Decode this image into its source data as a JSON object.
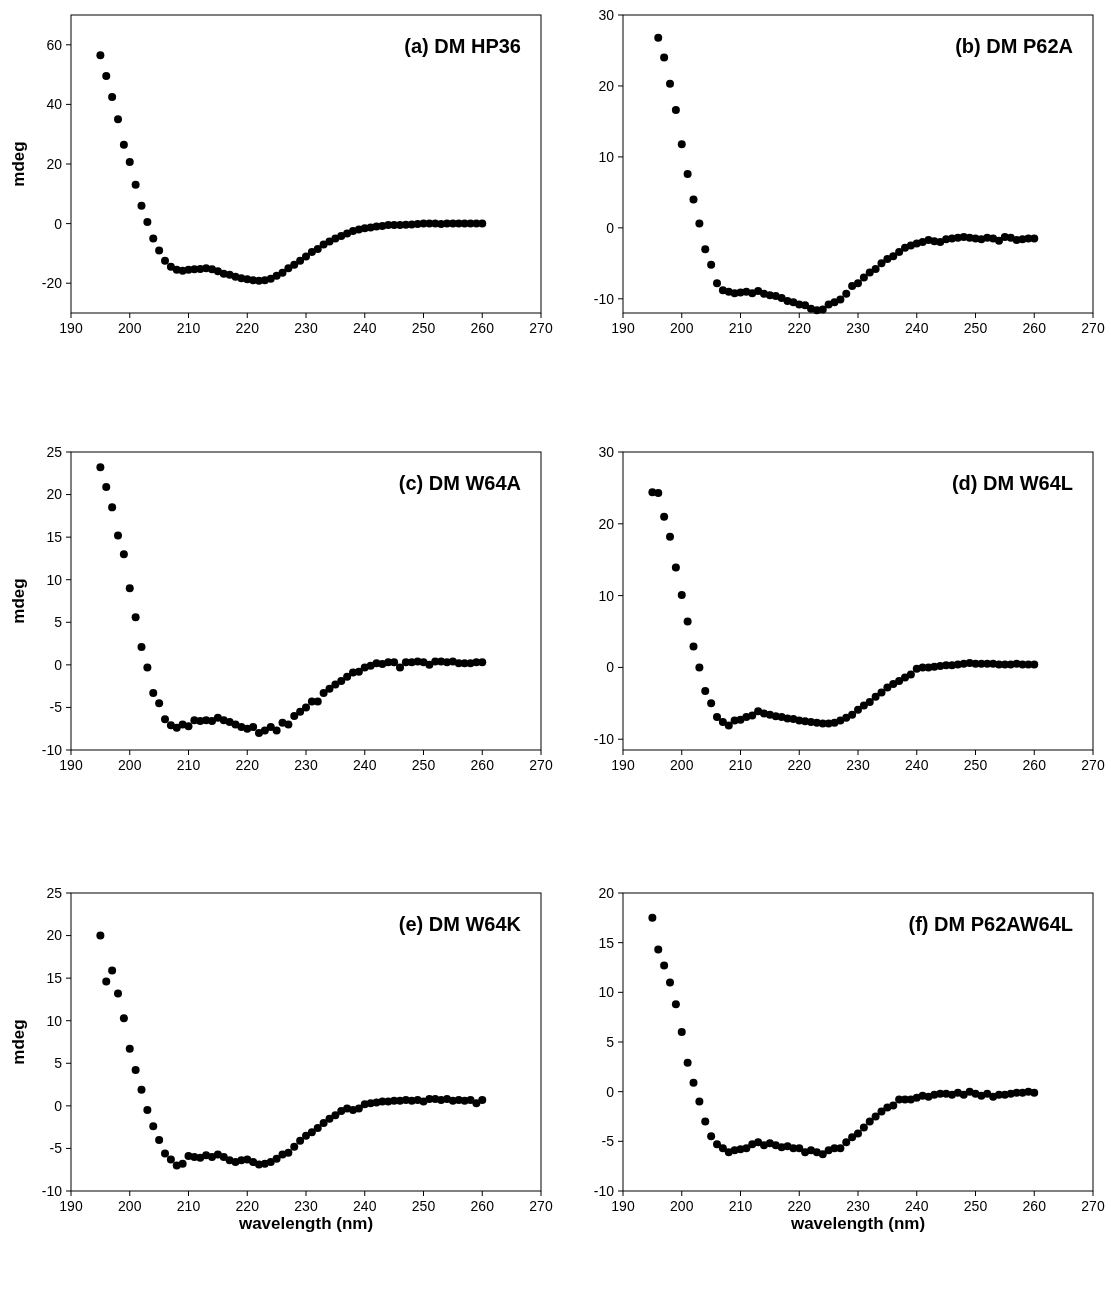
{
  "chart_data": [
    {
      "type": "scatter",
      "title": "(a) DM HP36",
      "ylabel": "mdeg",
      "xlim": [
        190,
        270
      ],
      "xticks": [
        190,
        200,
        210,
        220,
        230,
        240,
        250,
        260,
        270
      ],
      "ylim": [
        -30,
        70
      ],
      "yticks": [
        -20,
        0,
        20,
        40,
        60
      ],
      "marker": "circle",
      "color": "#000000",
      "x": [
        195,
        196,
        197,
        198,
        199,
        200,
        201,
        202,
        203,
        204,
        205,
        206,
        207,
        208,
        209,
        210,
        211,
        212,
        213,
        214,
        215,
        216,
        217,
        218,
        219,
        220,
        221,
        222,
        223,
        224,
        225,
        226,
        227,
        228,
        229,
        230,
        231,
        232,
        233,
        234,
        235,
        236,
        237,
        238,
        239,
        240,
        241,
        242,
        243,
        244,
        245,
        246,
        247,
        248,
        249,
        250,
        251,
        252,
        253,
        254,
        255,
        256,
        257,
        258,
        259,
        260
      ],
      "values": [
        56.5,
        49.5,
        42.5,
        35,
        26.5,
        20.7,
        13,
        6,
        0.5,
        -5,
        -9,
        -12.5,
        -14.5,
        -15.5,
        -15.8,
        -15.5,
        -15.3,
        -15.2,
        -15,
        -15.3,
        -16,
        -16.8,
        -17.2,
        -17.8,
        -18.3,
        -18.7,
        -19,
        -19.2,
        -19,
        -18.5,
        -17.5,
        -16.5,
        -15,
        -13.8,
        -12.5,
        -11,
        -9.5,
        -8.5,
        -7,
        -6,
        -5,
        -4.2,
        -3.3,
        -2.5,
        -2,
        -1.6,
        -1.3,
        -1,
        -0.8,
        -0.5,
        -0.5,
        -0.5,
        -0.4,
        -0.3,
        -0.1,
        0,
        0,
        0,
        -0.1,
        0,
        0,
        0,
        0,
        0,
        0,
        0
      ]
    },
    {
      "type": "scatter",
      "title": "(b) DM P62A",
      "xlim": [
        190,
        270
      ],
      "xticks": [
        190,
        200,
        210,
        220,
        230,
        240,
        250,
        260,
        270
      ],
      "ylim": [
        -12,
        30
      ],
      "yticks": [
        -10,
        0,
        10,
        20,
        30
      ],
      "marker": "circle",
      "color": "#000000",
      "x": [
        196,
        197,
        198,
        199,
        200,
        201,
        202,
        203,
        204,
        205,
        206,
        207,
        208,
        209,
        210,
        211,
        212,
        213,
        214,
        215,
        216,
        217,
        218,
        219,
        220,
        221,
        222,
        223,
        224,
        225,
        226,
        227,
        228,
        229,
        230,
        231,
        232,
        233,
        234,
        235,
        236,
        237,
        238,
        239,
        240,
        241,
        242,
        243,
        244,
        245,
        246,
        247,
        248,
        249,
        250,
        251,
        252,
        253,
        254,
        255,
        256,
        257,
        258,
        259,
        260
      ],
      "values": [
        26.8,
        24,
        20.3,
        16.6,
        11.8,
        7.6,
        4,
        0.6,
        -3,
        -5.2,
        -7.8,
        -8.8,
        -9,
        -9.2,
        -9.1,
        -9,
        -9.2,
        -8.9,
        -9.3,
        -9.5,
        -9.6,
        -9.9,
        -10.3,
        -10.5,
        -10.8,
        -10.9,
        -11.4,
        -11.6,
        -11.5,
        -10.8,
        -10.5,
        -10.1,
        -9.3,
        -8.2,
        -7.8,
        -7,
        -6.3,
        -5.8,
        -5,
        -4.4,
        -4,
        -3.4,
        -2.8,
        -2.5,
        -2.2,
        -2,
        -1.7,
        -1.9,
        -2,
        -1.6,
        -1.5,
        -1.4,
        -1.3,
        -1.4,
        -1.5,
        -1.6,
        -1.4,
        -1.5,
        -1.8,
        -1.3,
        -1.4,
        -1.7,
        -1.6,
        -1.5,
        -1.5
      ]
    },
    {
      "type": "scatter",
      "title": "(c) DM W64A",
      "ylabel": "mdeg",
      "xlim": [
        190,
        270
      ],
      "xticks": [
        190,
        200,
        210,
        220,
        230,
        240,
        250,
        260,
        270
      ],
      "ylim": [
        -10,
        25
      ],
      "yticks": [
        -10,
        -5,
        0,
        5,
        10,
        15,
        20,
        25
      ],
      "marker": "circle",
      "color": "#000000",
      "x": [
        195,
        196,
        197,
        198,
        199,
        200,
        201,
        202,
        203,
        204,
        205,
        206,
        207,
        208,
        209,
        210,
        211,
        212,
        213,
        214,
        215,
        216,
        217,
        218,
        219,
        220,
        221,
        222,
        223,
        224,
        225,
        226,
        227,
        228,
        229,
        230,
        231,
        232,
        233,
        234,
        235,
        236,
        237,
        238,
        239,
        240,
        241,
        242,
        243,
        244,
        245,
        246,
        247,
        248,
        249,
        250,
        251,
        252,
        253,
        254,
        255,
        256,
        257,
        258,
        259,
        260
      ],
      "values": [
        23.2,
        20.9,
        18.5,
        15.2,
        13,
        9,
        5.6,
        2.1,
        -0.3,
        -3.3,
        -4.5,
        -6.4,
        -7.1,
        -7.4,
        -7,
        -7.2,
        -6.5,
        -6.6,
        -6.5,
        -6.6,
        -6.2,
        -6.5,
        -6.7,
        -7,
        -7.3,
        -7.5,
        -7.3,
        -8,
        -7.7,
        -7.3,
        -7.7,
        -6.8,
        -7,
        -6,
        -5.5,
        -5,
        -4.3,
        -4.3,
        -3.3,
        -2.8,
        -2.3,
        -1.9,
        -1.4,
        -0.9,
        -0.8,
        -0.3,
        -0.1,
        0.2,
        0.1,
        0.3,
        0.3,
        -0.3,
        0.3,
        0.3,
        0.4,
        0.3,
        0,
        0.4,
        0.4,
        0.3,
        0.4,
        0.2,
        0.2,
        0.2,
        0.3,
        0.3
      ]
    },
    {
      "type": "scatter",
      "title": "(d) DM W64L",
      "xlim": [
        190,
        270
      ],
      "xticks": [
        190,
        200,
        210,
        220,
        230,
        240,
        250,
        260,
        270
      ],
      "ylim": [
        -11.5,
        30
      ],
      "yticks": [
        -10,
        0,
        10,
        20,
        30
      ],
      "marker": "circle",
      "color": "#000000",
      "x": [
        195,
        196,
        197,
        198,
        199,
        200,
        201,
        202,
        203,
        204,
        205,
        206,
        207,
        208,
        209,
        210,
        211,
        212,
        213,
        214,
        215,
        216,
        217,
        218,
        219,
        220,
        221,
        222,
        223,
        224,
        225,
        226,
        227,
        228,
        229,
        230,
        231,
        232,
        233,
        234,
        235,
        236,
        237,
        238,
        239,
        240,
        241,
        242,
        243,
        244,
        245,
        246,
        247,
        248,
        249,
        250,
        251,
        252,
        253,
        254,
        255,
        256,
        257,
        258,
        259,
        260
      ],
      "values": [
        24.4,
        24.3,
        21,
        18.2,
        13.9,
        10.1,
        6.4,
        2.9,
        0,
        -3.3,
        -5,
        -6.9,
        -7.6,
        -8.1,
        -7.4,
        -7.3,
        -6.9,
        -6.7,
        -6.1,
        -6.4,
        -6.6,
        -6.8,
        -6.9,
        -7.1,
        -7.2,
        -7.4,
        -7.5,
        -7.6,
        -7.7,
        -7.8,
        -7.8,
        -7.7,
        -7.4,
        -7,
        -6.6,
        -5.9,
        -5.3,
        -4.8,
        -4.1,
        -3.5,
        -2.8,
        -2.3,
        -1.9,
        -1.4,
        -1,
        -0.2,
        0,
        0,
        0.1,
        0.2,
        0.3,
        0.3,
        0.4,
        0.5,
        0.6,
        0.5,
        0.5,
        0.5,
        0.5,
        0.4,
        0.4,
        0.4,
        0.5,
        0.4,
        0.4,
        0.4
      ]
    },
    {
      "type": "scatter",
      "title": "(e) DM W64K",
      "xlabel": "wavelength (nm)",
      "ylabel": "mdeg",
      "xlim": [
        190,
        270
      ],
      "xticks": [
        190,
        200,
        210,
        220,
        230,
        240,
        250,
        260,
        270
      ],
      "ylim": [
        -10,
        25
      ],
      "yticks": [
        -10,
        -5,
        0,
        5,
        10,
        15,
        20,
        25
      ],
      "marker": "circle",
      "color": "#000000",
      "x": [
        195,
        196,
        197,
        198,
        199,
        200,
        201,
        202,
        203,
        204,
        205,
        206,
        207,
        208,
        209,
        210,
        211,
        212,
        213,
        214,
        215,
        216,
        217,
        218,
        219,
        220,
        221,
        222,
        223,
        224,
        225,
        226,
        227,
        228,
        229,
        230,
        231,
        232,
        233,
        234,
        235,
        236,
        237,
        238,
        239,
        240,
        241,
        242,
        243,
        244,
        245,
        246,
        247,
        248,
        249,
        250,
        251,
        252,
        253,
        254,
        255,
        256,
        257,
        258,
        259,
        260
      ],
      "values": [
        20,
        14.6,
        15.9,
        13.2,
        10.3,
        6.7,
        4.2,
        1.9,
        -0.5,
        -2.4,
        -4,
        -5.6,
        -6.3,
        -7,
        -6.8,
        -5.9,
        -6,
        -6.1,
        -5.8,
        -6,
        -5.7,
        -6,
        -6.4,
        -6.6,
        -6.4,
        -6.3,
        -6.6,
        -6.9,
        -6.8,
        -6.6,
        -6.2,
        -5.7,
        -5.5,
        -4.8,
        -4.1,
        -3.5,
        -3.1,
        -2.6,
        -2,
        -1.5,
        -1.1,
        -0.6,
        -0.3,
        -0.5,
        -0.3,
        0.2,
        0.3,
        0.4,
        0.5,
        0.5,
        0.6,
        0.6,
        0.7,
        0.6,
        0.7,
        0.5,
        0.8,
        0.8,
        0.7,
        0.8,
        0.6,
        0.7,
        0.6,
        0.7,
        0.3,
        0.7
      ]
    },
    {
      "type": "scatter",
      "title": "(f) DM P62AW64L",
      "xlabel": "wavelength (nm)",
      "xlim": [
        190,
        270
      ],
      "xticks": [
        190,
        200,
        210,
        220,
        230,
        240,
        250,
        260,
        270
      ],
      "ylim": [
        -10,
        20
      ],
      "yticks": [
        -10,
        -5,
        0,
        5,
        10,
        15,
        20
      ],
      "marker": "circle",
      "color": "#000000",
      "x": [
        195,
        196,
        197,
        198,
        199,
        200,
        201,
        202,
        203,
        204,
        205,
        206,
        207,
        208,
        209,
        210,
        211,
        212,
        213,
        214,
        215,
        216,
        217,
        218,
        219,
        220,
        221,
        222,
        223,
        224,
        225,
        226,
        227,
        228,
        229,
        230,
        231,
        232,
        233,
        234,
        235,
        236,
        237,
        238,
        239,
        240,
        241,
        242,
        243,
        244,
        245,
        246,
        247,
        248,
        249,
        250,
        251,
        252,
        253,
        254,
        255,
        256,
        257,
        258,
        259,
        260
      ],
      "values": [
        17.5,
        14.3,
        12.7,
        11,
        8.8,
        6,
        2.9,
        0.9,
        -1,
        -3,
        -4.5,
        -5.3,
        -5.7,
        -6.1,
        -5.9,
        -5.8,
        -5.7,
        -5.3,
        -5.1,
        -5.4,
        -5.2,
        -5.4,
        -5.6,
        -5.5,
        -5.7,
        -5.7,
        -6.1,
        -5.9,
        -6.1,
        -6.3,
        -5.9,
        -5.7,
        -5.7,
        -5.1,
        -4.6,
        -4.2,
        -3.6,
        -3,
        -2.5,
        -2,
        -1.6,
        -1.4,
        -0.8,
        -0.8,
        -0.8,
        -0.6,
        -0.4,
        -0.5,
        -0.3,
        -0.2,
        -0.2,
        -0.3,
        -0.1,
        -0.3,
        0,
        -0.2,
        -0.4,
        -0.2,
        -0.5,
        -0.3,
        -0.3,
        -0.2,
        -0.1,
        -0.1,
        0,
        -0.1
      ]
    }
  ]
}
